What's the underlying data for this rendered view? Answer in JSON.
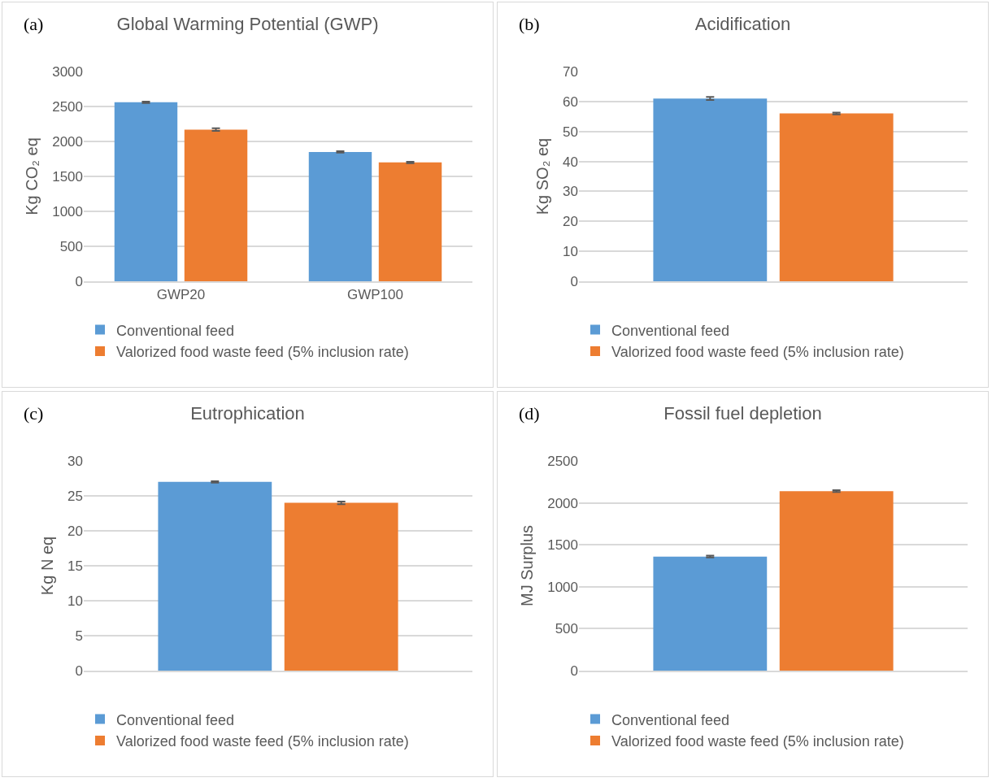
{
  "chart_data": [
    {
      "type": "bar",
      "title": "Global Warming Potential (GWP)",
      "ylabel": "Kg CO₂ eq",
      "annotations": [
        "(a)"
      ],
      "categories": [
        "GWP20",
        "GWP100"
      ],
      "series": [
        {
          "name": "Conventional feed",
          "color": "#5b9bd5",
          "values": [
            2560,
            1850
          ],
          "errors": [
            10,
            10
          ]
        },
        {
          "name": "Valorized food waste feed (5% inclusion rate)",
          "color": "#ed7d31",
          "values": [
            2170,
            1700
          ],
          "errors": [
            20,
            10
          ]
        }
      ],
      "ylim": [
        0,
        3000
      ],
      "yticks": [
        0,
        500,
        1000,
        1500,
        2000,
        2500,
        3000
      ],
      "grid": "y",
      "legend": "bottom"
    },
    {
      "type": "bar",
      "title": "Acidification",
      "ylabel": "Kg SO₂ eq",
      "annotations": [
        "(b)"
      ],
      "categories": [
        null
      ],
      "series": [
        {
          "name": "Conventional feed",
          "color": "#5b9bd5",
          "values": [
            61
          ],
          "errors": [
            0.5
          ]
        },
        {
          "name": "Valorized food waste feed (5% inclusion rate)",
          "color": "#ed7d31",
          "values": [
            56
          ],
          "errors": [
            0.3
          ]
        }
      ],
      "ylim": [
        0,
        70
      ],
      "yticks": [
        0,
        10,
        20,
        30,
        40,
        50,
        60,
        70
      ],
      "grid": "y",
      "legend": "bottom"
    },
    {
      "type": "bar",
      "title": "Eutrophication",
      "ylabel": "Kg N eq",
      "annotations": [
        "(c)"
      ],
      "categories": [
        null
      ],
      "series": [
        {
          "name": "Conventional feed",
          "color": "#5b9bd5",
          "values": [
            27
          ],
          "errors": [
            0.1
          ]
        },
        {
          "name": "Valorized food waste feed (5% inclusion rate)",
          "color": "#ed7d31",
          "values": [
            24
          ],
          "errors": [
            0.2
          ]
        }
      ],
      "ylim": [
        0,
        30
      ],
      "yticks": [
        0,
        5,
        10,
        15,
        20,
        25,
        30
      ],
      "grid": "y",
      "legend": "bottom"
    },
    {
      "type": "bar",
      "title": "Fossil fuel depletion",
      "ylabel": "MJ Surplus",
      "annotations": [
        "(d)"
      ],
      "categories": [
        null
      ],
      "series": [
        {
          "name": "Conventional feed",
          "color": "#5b9bd5",
          "values": [
            1360
          ],
          "errors": [
            10
          ]
        },
        {
          "name": "Valorized food waste feed (5% inclusion rate)",
          "color": "#ed7d31",
          "values": [
            2140
          ],
          "errors": [
            10
          ]
        }
      ],
      "ylim": [
        0,
        2500
      ],
      "yticks": [
        0,
        500,
        1000,
        1500,
        2000,
        2500
      ],
      "grid": "y",
      "legend": "bottom"
    }
  ]
}
